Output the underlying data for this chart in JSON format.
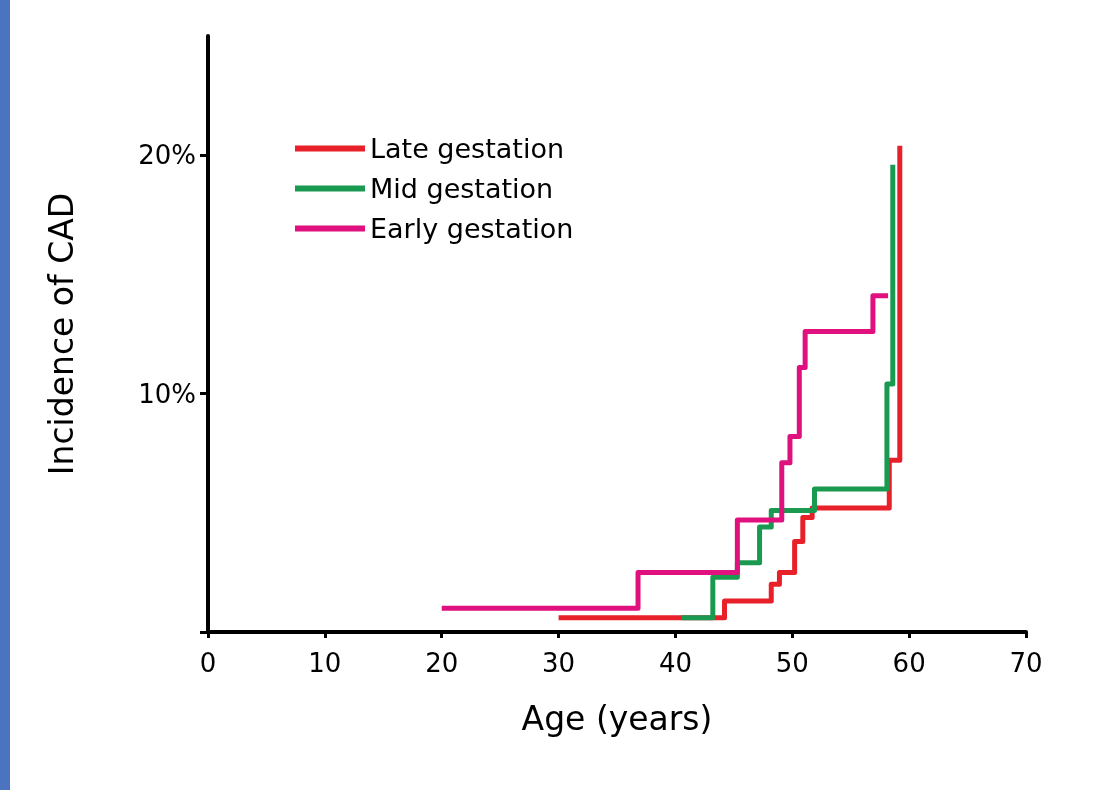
{
  "chart_data": {
    "type": "step",
    "xlabel": "Age (years)",
    "ylabel": "Incidence of CAD",
    "xlim": [
      0,
      70
    ],
    "xticks": [
      0,
      10,
      20,
      30,
      40,
      50,
      60,
      70
    ],
    "ylim": [
      0,
      25
    ],
    "yticks": [
      {
        "value": 0,
        "label": null
      },
      {
        "value": 10,
        "label": "10%"
      },
      {
        "value": 20,
        "label": "20%"
      }
    ],
    "grid": false,
    "legend": "top left",
    "marker": "none",
    "line_style": "solid",
    "series": [
      {
        "name": "Late gestation",
        "color": "#e8202a",
        "x": [
          30,
          44.2,
          48.2,
          48.9,
          50.2,
          50.9,
          51.7,
          58.3,
          59.2,
          59.2
        ],
        "values": [
          0.6,
          1.3,
          2.0,
          2.5,
          3.8,
          4.8,
          5.2,
          7.2,
          10.0,
          20.4
        ]
      },
      {
        "name": "Mid gestation",
        "color": "#1a9a50",
        "x": [
          40.5,
          43.2,
          45.3,
          47.2,
          48.2,
          51.9,
          58.1,
          58.6,
          58.6
        ],
        "values": [
          0.6,
          2.3,
          2.9,
          4.4,
          5.1,
          6.0,
          10.4,
          19.6,
          19.6
        ]
      },
      {
        "name": "Early gestation",
        "color": "#e0107f",
        "x": [
          20,
          36.8,
          45.3,
          49.1,
          49.8,
          50.6,
          51.1,
          56.9,
          58.2
        ],
        "values": [
          1.0,
          2.5,
          4.7,
          7.1,
          8.2,
          11.1,
          12.6,
          14.1,
          14.1
        ]
      }
    ]
  }
}
